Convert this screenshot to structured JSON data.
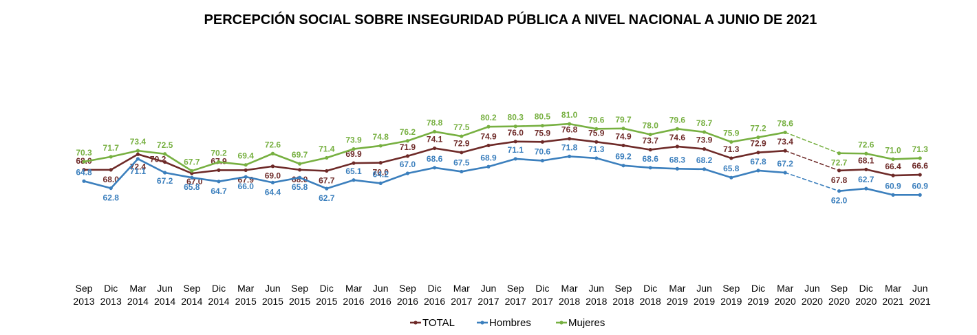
{
  "chart_data": {
    "type": "line",
    "title": "PERCEPCIÓN SOCIAL SOBRE INSEGURIDAD PÚBLICA A NIVEL NACIONAL A JUNIO DE 2021",
    "xlabel": "",
    "ylabel": "",
    "grid": false,
    "legend_position": "bottom-center",
    "categories": [
      [
        "Sep",
        "2013"
      ],
      [
        "Dic",
        "2013"
      ],
      [
        "Mar",
        "2014"
      ],
      [
        "Jun",
        "2014"
      ],
      [
        "Sep",
        "2014"
      ],
      [
        "Dic",
        "2014"
      ],
      [
        "Mar",
        "2015"
      ],
      [
        "Jun",
        "2015"
      ],
      [
        "Sep",
        "2015"
      ],
      [
        "Dic",
        "2015"
      ],
      [
        "Mar",
        "2016"
      ],
      [
        "Jun",
        "2016"
      ],
      [
        "Sep",
        "2016"
      ],
      [
        "Dic",
        "2016"
      ],
      [
        "Mar",
        "2017"
      ],
      [
        "Jun",
        "2017"
      ],
      [
        "Sep",
        "2017"
      ],
      [
        "Dic",
        "2017"
      ],
      [
        "Mar",
        "2018"
      ],
      [
        "Jun",
        "2018"
      ],
      [
        "Sep",
        "2018"
      ],
      [
        "Dic",
        "2018"
      ],
      [
        "Mar",
        "2019"
      ],
      [
        "Jun",
        "2019"
      ],
      [
        "Sep",
        "2019"
      ],
      [
        "Dic",
        "2019"
      ],
      [
        "Mar",
        "2020"
      ],
      [
        "Jun",
        "2020"
      ],
      [
        "Sep",
        "2020"
      ],
      [
        "Dic",
        "2020"
      ],
      [
        "Mar",
        "2021"
      ],
      [
        "Jun",
        "2021"
      ]
    ],
    "series": [
      {
        "name": "TOTAL",
        "color": "#6e2a28",
        "values": [
          68.0,
          68.0,
          72.4,
          70.2,
          67.0,
          67.9,
          67.9,
          69.0,
          68.0,
          67.7,
          69.9,
          70.0,
          71.9,
          74.1,
          72.9,
          74.9,
          76.0,
          75.9,
          76.8,
          75.9,
          74.9,
          73.7,
          74.6,
          73.9,
          71.3,
          72.9,
          73.4,
          null,
          67.8,
          68.1,
          66.4,
          66.6
        ]
      },
      {
        "name": "Hombres",
        "color": "#3b7fbd",
        "values": [
          64.8,
          62.8,
          71.1,
          67.2,
          65.8,
          64.7,
          66.0,
          64.4,
          65.8,
          62.7,
          65.1,
          64.2,
          67.0,
          68.6,
          67.5,
          68.9,
          71.1,
          70.6,
          71.8,
          71.3,
          69.2,
          68.6,
          68.3,
          68.2,
          65.8,
          67.8,
          67.2,
          null,
          62.0,
          62.7,
          60.9,
          60.9
        ]
      },
      {
        "name": "Mujeres",
        "color": "#77b041",
        "values": [
          70.3,
          71.7,
          73.4,
          72.5,
          67.7,
          70.2,
          69.4,
          72.6,
          69.7,
          71.4,
          73.9,
          74.8,
          76.2,
          78.8,
          77.5,
          80.2,
          80.3,
          80.5,
          81.0,
          79.6,
          79.7,
          78.0,
          79.6,
          78.7,
          75.9,
          77.2,
          78.6,
          null,
          72.7,
          72.6,
          71.0,
          71.3
        ]
      }
    ]
  }
}
